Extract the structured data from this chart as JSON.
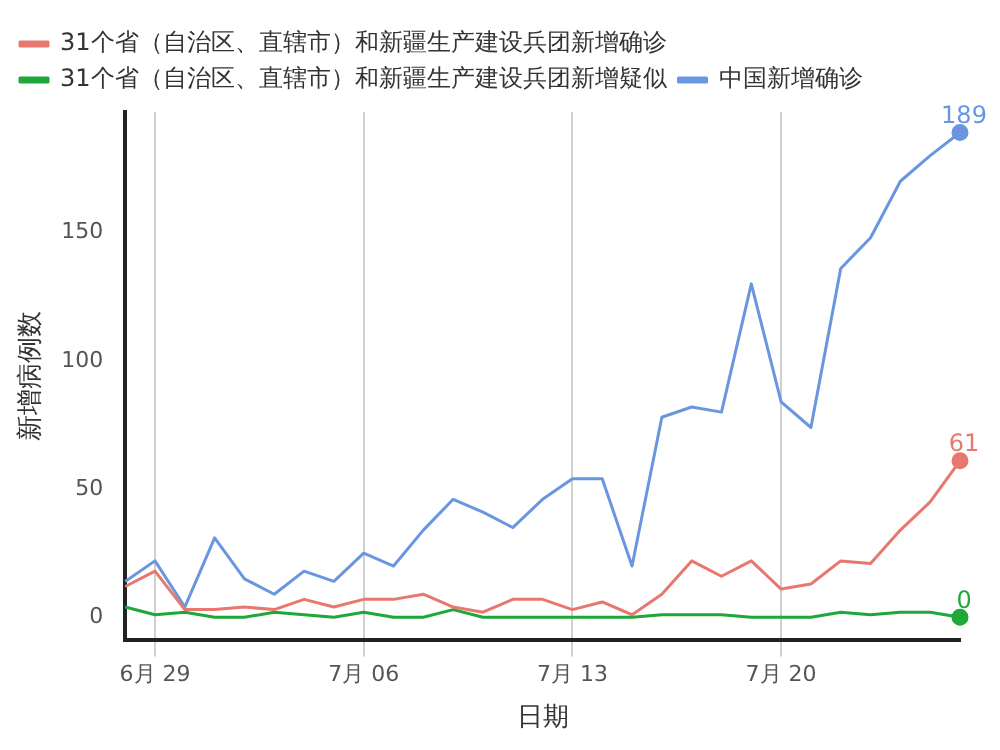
{
  "chart_data": {
    "type": "line",
    "xlabel": "日期",
    "ylabel": "新增病例数",
    "categories": [
      null,
      "6月 29",
      null,
      null,
      null,
      null,
      null,
      null,
      "7月 06",
      null,
      null,
      null,
      null,
      null,
      null,
      "7月 13",
      null,
      null,
      null,
      null,
      null,
      null,
      "7月 20",
      null,
      null,
      null,
      null,
      null,
      null
    ],
    "series": [
      {
        "name": "31个省（自治区、直辖市）和新疆生产建设兵团新增确诊",
        "color": "#e8786f",
        "values": [
          12,
          18,
          3,
          3,
          4,
          3,
          7,
          4,
          7,
          7,
          9,
          4,
          2,
          7,
          7,
          3,
          6,
          1,
          9,
          22,
          16,
          22,
          11,
          13,
          22,
          21,
          34,
          45,
          61
        ],
        "value_labels": [
          null,
          null,
          null,
          null,
          null,
          null,
          null,
          null,
          null,
          null,
          null,
          null,
          null,
          null,
          null,
          null,
          null,
          null,
          null,
          null,
          null,
          null,
          null,
          null,
          null,
          null,
          null,
          null,
          "61"
        ]
      },
      {
        "name": "31个省（自治区、直辖市）和新疆生产建设兵团新增疑似",
        "color": "#1fa83a",
        "values": [
          4,
          1,
          2,
          0,
          0,
          2,
          1,
          0,
          2,
          0,
          0,
          3,
          0,
          0,
          0,
          0,
          0,
          0,
          1,
          1,
          1,
          0,
          0,
          0,
          2,
          1,
          2,
          2,
          0
        ],
        "value_labels": [
          null,
          null,
          null,
          null,
          null,
          null,
          null,
          null,
          null,
          null,
          null,
          null,
          null,
          null,
          null,
          null,
          null,
          null,
          null,
          null,
          null,
          null,
          null,
          null,
          null,
          null,
          null,
          null,
          "0"
        ]
      },
      {
        "name": "中国新增确诊",
        "color": "#6a96e0",
        "values": [
          14,
          22,
          4,
          31,
          15,
          9,
          18,
          14,
          25,
          20,
          34,
          46,
          41,
          35,
          46,
          54,
          54,
          20,
          78,
          82,
          80,
          130,
          84,
          74,
          136,
          148,
          170,
          180,
          189
        ],
        "value_labels": [
          null,
          null,
          null,
          null,
          null,
          null,
          null,
          null,
          null,
          null,
          null,
          null,
          null,
          null,
          null,
          null,
          null,
          null,
          null,
          null,
          null,
          null,
          null,
          null,
          null,
          null,
          null,
          null,
          "189"
        ]
      }
    ],
    "ylim": [
      -9,
      197
    ],
    "yticks": [
      0,
      50,
      100,
      150
    ],
    "grid": "x",
    "legend": "top",
    "line_style": "solid"
  }
}
